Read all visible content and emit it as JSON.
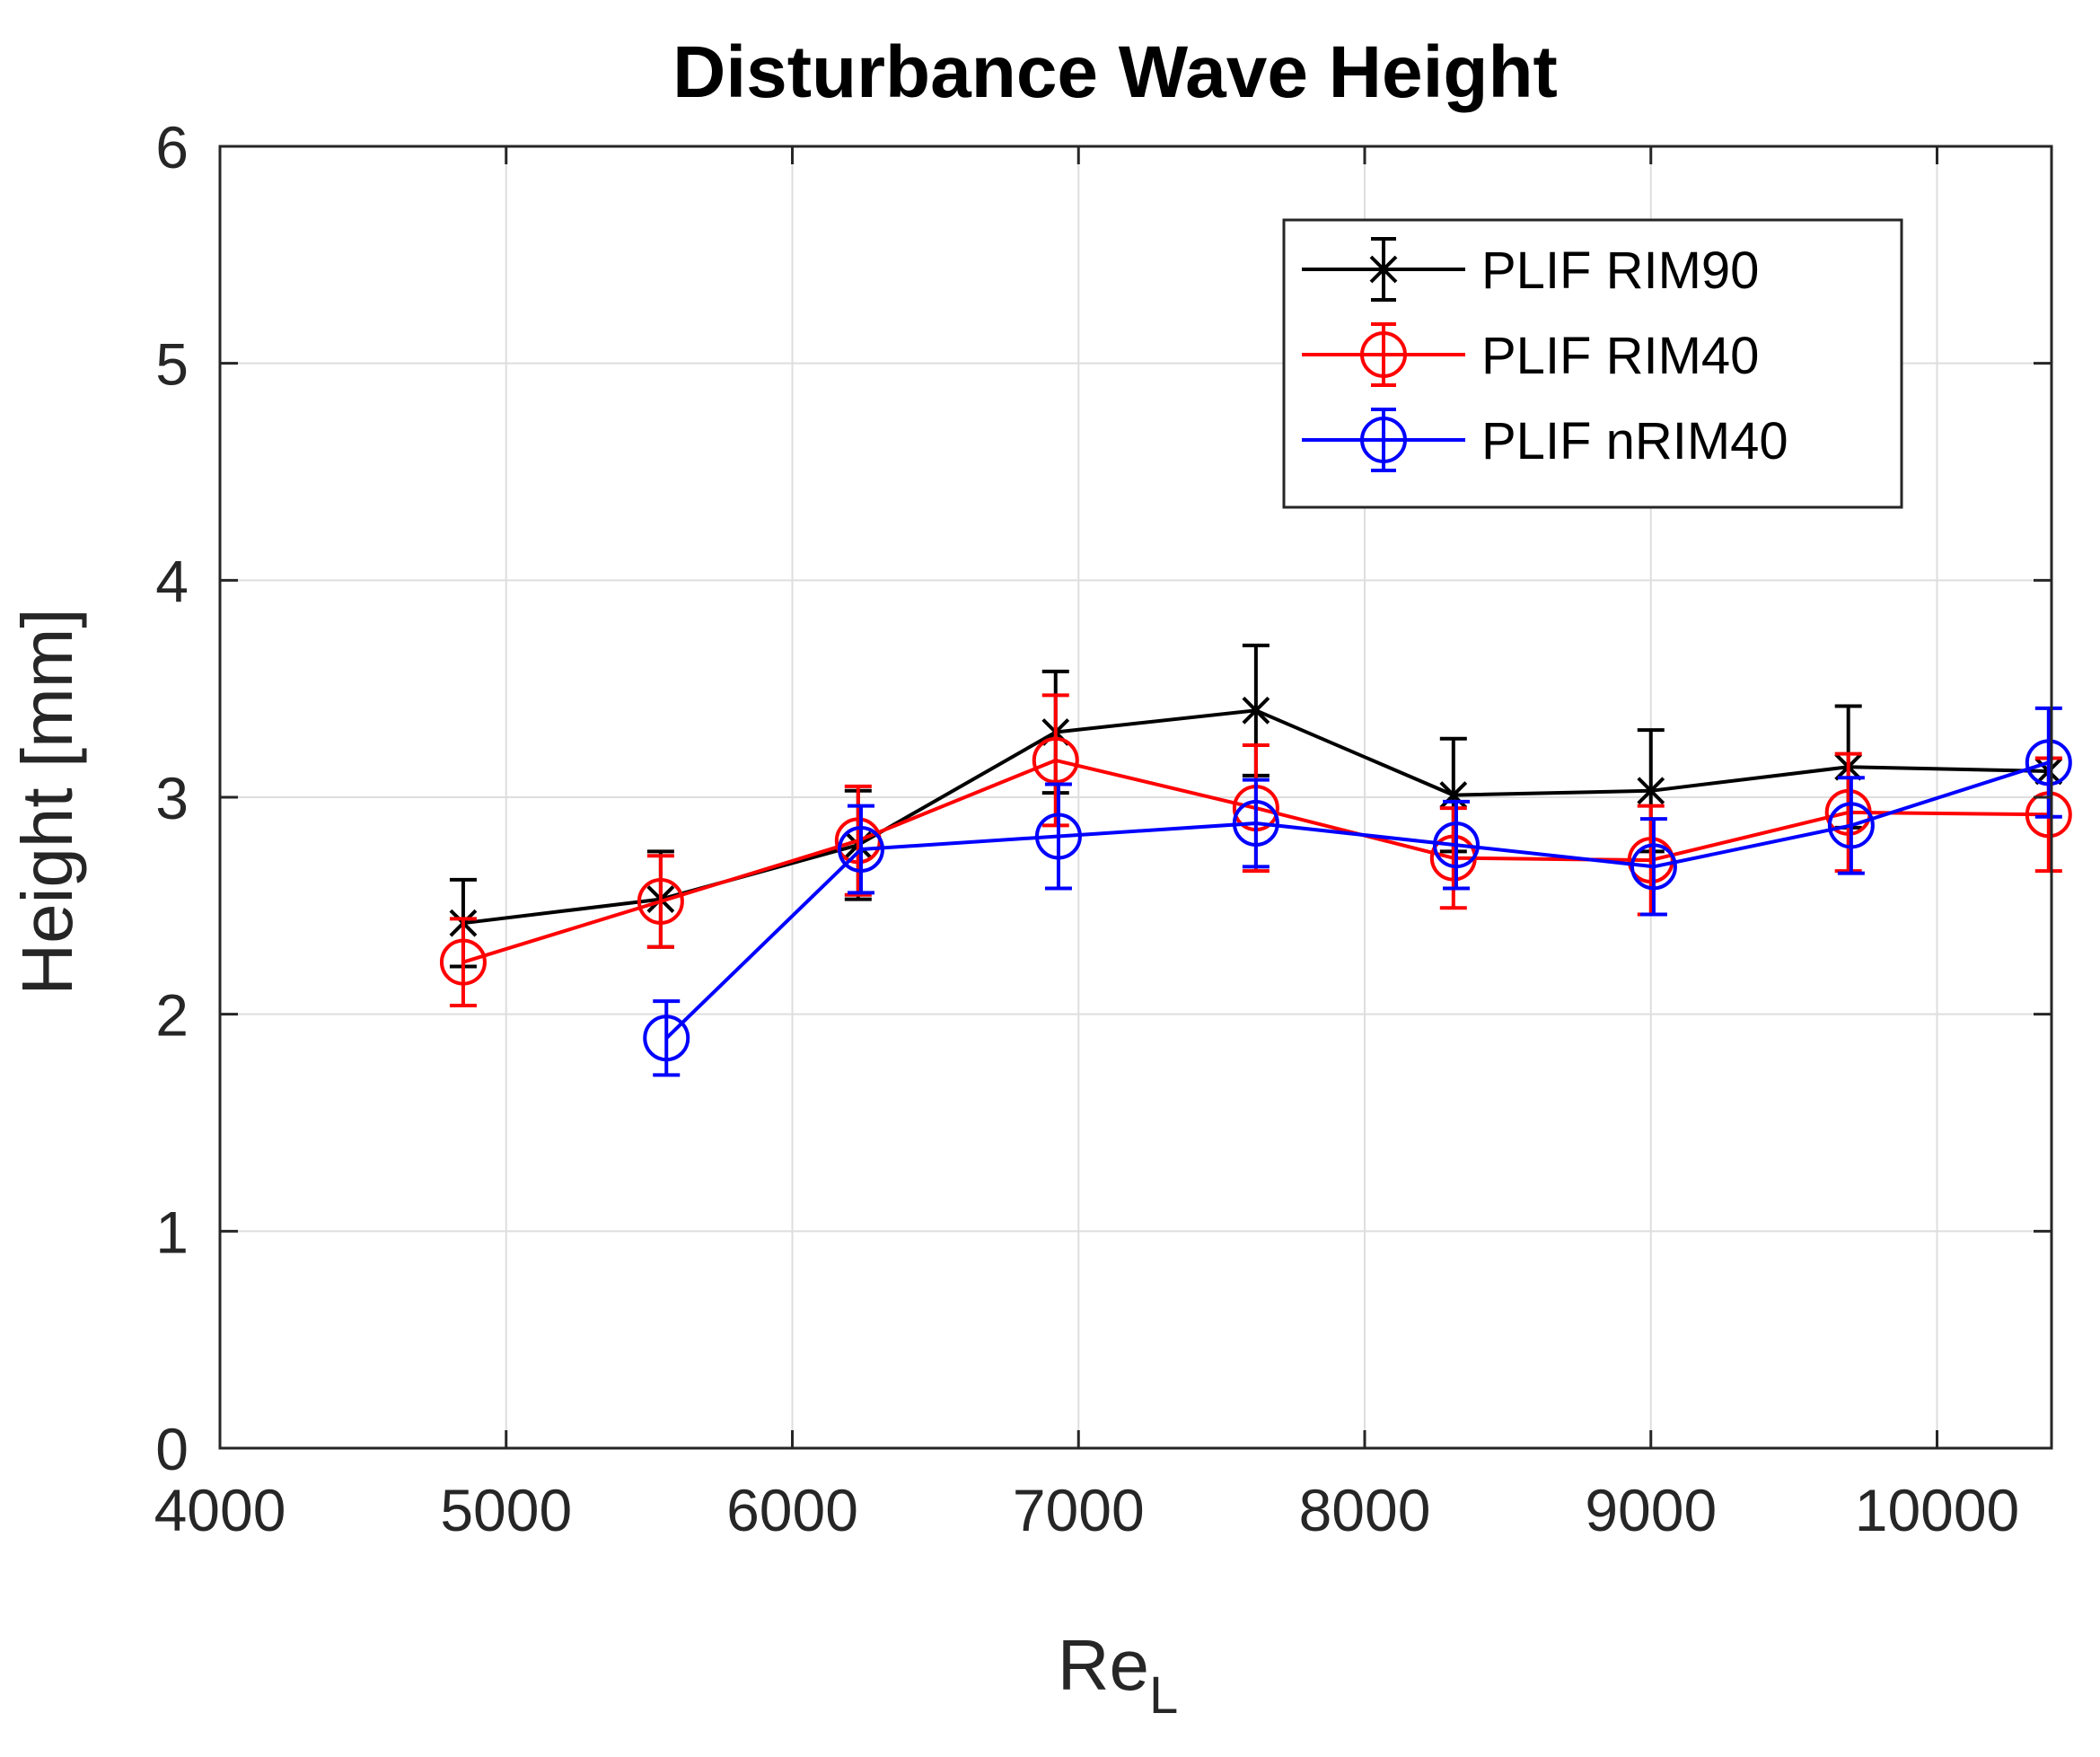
{
  "chart_data": {
    "type": "line",
    "title": "Disturbance Wave Height",
    "xlabel": "Re",
    "xlabel_subscript": "L",
    "ylabel": "Height [mm]",
    "xlim": [
      4000,
      10400
    ],
    "ylim": [
      0,
      6
    ],
    "xticks": [
      4000,
      5000,
      6000,
      7000,
      8000,
      9000,
      10000
    ],
    "yticks": [
      0,
      1,
      2,
      3,
      4,
      5,
      6
    ],
    "grid": true,
    "legend_position": "top-right",
    "series": [
      {
        "name": "PLIF RIM90",
        "color": "#000000",
        "marker": "x",
        "x": [
          4850,
          5540,
          6230,
          6920,
          7620,
          8310,
          9000,
          9690,
          10390
        ],
        "y": [
          2.42,
          2.53,
          2.78,
          3.3,
          3.4,
          3.01,
          3.03,
          3.14,
          3.12
        ],
        "err": [
          0.2,
          0.22,
          0.25,
          0.28,
          0.3,
          0.26,
          0.28,
          0.28,
          0.0
        ]
      },
      {
        "name": "PLIF RIM40",
        "color": "#ff0000",
        "marker": "o",
        "x": [
          4850,
          5540,
          6230,
          6920,
          7620,
          8310,
          9000,
          9690,
          10390
        ],
        "y": [
          2.24,
          2.52,
          2.8,
          3.17,
          2.95,
          2.72,
          2.71,
          2.93,
          2.92
        ],
        "err": [
          0.2,
          0.21,
          0.25,
          0.3,
          0.29,
          0.23,
          0.25,
          0.27,
          0.26
        ]
      },
      {
        "name": "PLIF nRIM40",
        "color": "#0000ff",
        "marker": "o",
        "x": [
          5560,
          6240,
          6930,
          7620,
          8320,
          9010,
          9700,
          10390
        ],
        "y": [
          1.89,
          2.76,
          2.82,
          2.88,
          2.78,
          2.68,
          2.87,
          3.16
        ],
        "err": [
          0.17,
          0.2,
          0.24,
          0.2,
          0.2,
          0.22,
          0.22,
          0.25
        ]
      }
    ]
  }
}
